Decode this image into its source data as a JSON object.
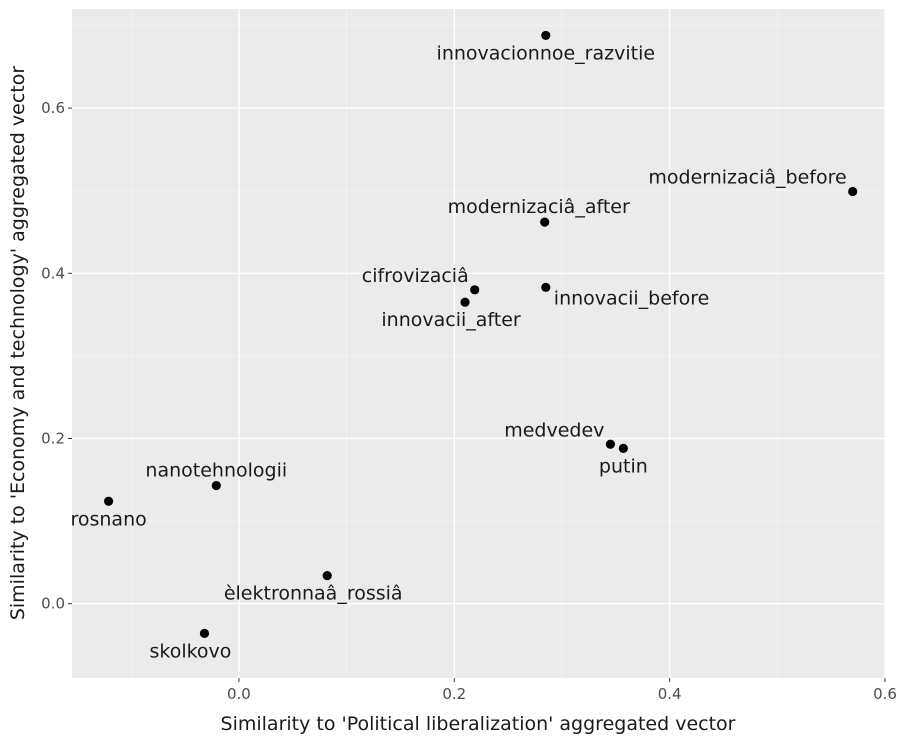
{
  "chart_data": {
    "type": "scatter",
    "title": "",
    "xlabel": "Similarity to 'Political liberalization' aggregated vector",
    "ylabel": "Similarity to 'Economy and technology' aggregated vector",
    "xlim": [
      -0.155,
      0.6
    ],
    "ylim": [
      -0.09,
      0.72
    ],
    "x_ticks": [
      {
        "value": 0.0,
        "label": "0.0"
      },
      {
        "value": 0.2,
        "label": "0.2"
      },
      {
        "value": 0.4,
        "label": "0.4"
      },
      {
        "value": 0.6,
        "label": "0.6"
      }
    ],
    "y_ticks": [
      {
        "value": 0.0,
        "label": "0.0"
      },
      {
        "value": 0.2,
        "label": "0.2"
      },
      {
        "value": 0.4,
        "label": "0.4"
      },
      {
        "value": 0.6,
        "label": "0.6"
      }
    ],
    "grid": true,
    "legend": "none",
    "colors": {
      "panel_background": "#ebebeb",
      "grid_major": "#ffffff",
      "point": "#000000"
    },
    "points": [
      {
        "label": "innovacionnoe_razvitie",
        "x": 0.285,
        "y": 0.688,
        "label_pos": "below"
      },
      {
        "label": "modernizaciâ_before",
        "x": 0.57,
        "y": 0.499,
        "label_pos": "above-left"
      },
      {
        "label": "modernizaciâ_after",
        "x": 0.284,
        "y": 0.462,
        "label_pos": "above-center"
      },
      {
        "label": "cifrovizaciâ",
        "x": 0.219,
        "y": 0.38,
        "label_pos": "above-left"
      },
      {
        "label": "innovacii_after",
        "x": 0.21,
        "y": 0.365,
        "label_pos": "below-left"
      },
      {
        "label": "innovacii_before",
        "x": 0.285,
        "y": 0.383,
        "label_pos": "right"
      },
      {
        "label": "medvedev",
        "x": 0.345,
        "y": 0.193,
        "label_pos": "above-left"
      },
      {
        "label": "putin",
        "x": 0.357,
        "y": 0.188,
        "label_pos": "below"
      },
      {
        "label": "nanotehnologii",
        "x": -0.021,
        "y": 0.143,
        "label_pos": "above"
      },
      {
        "label": "rosnano",
        "x": -0.121,
        "y": 0.124,
        "label_pos": "below"
      },
      {
        "label": "èlektronnaâ_rossiâ",
        "x": 0.082,
        "y": 0.034,
        "label_pos": "below-left"
      },
      {
        "label": "skolkovo",
        "x": -0.032,
        "y": -0.036,
        "label_pos": "below-left"
      }
    ]
  }
}
